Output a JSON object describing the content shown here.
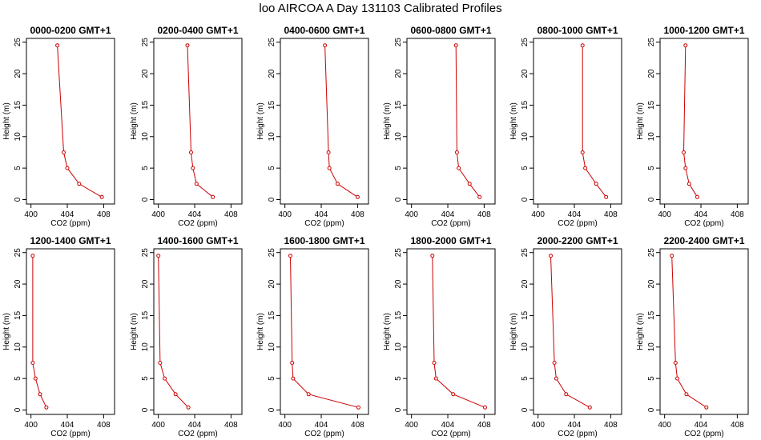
{
  "figure": {
    "title": "loo AIRCOA A  Day 131103  Calibrated Profiles"
  },
  "chart_data": [
    {
      "type": "line",
      "title": "0000-0200 GMT+1",
      "xlabel": "CO2 (ppm)",
      "ylabel": "Height (m)",
      "xlim": [
        399.5,
        409.2
      ],
      "ylim": [
        -0.7,
        25.6
      ],
      "x_ticks": [
        400,
        404,
        408
      ],
      "y_ticks": [
        0,
        5,
        10,
        15,
        20,
        25
      ],
      "color": "#cc0000",
      "series": [
        {
          "x": [
            402.9,
            403.6,
            404.0,
            405.3,
            407.8
          ],
          "y": [
            24.5,
            7.5,
            5.0,
            2.5,
            0.4
          ]
        }
      ]
    },
    {
      "type": "line",
      "title": "0200-0400 GMT+1",
      "xlabel": "CO2 (ppm)",
      "ylabel": "Height (m)",
      "xlim": [
        399.5,
        409.2
      ],
      "ylim": [
        -0.7,
        25.6
      ],
      "x_ticks": [
        400,
        404,
        408
      ],
      "y_ticks": [
        0,
        5,
        10,
        15,
        20,
        25
      ],
      "color": "#cc0000",
      "series": [
        {
          "x": [
            403.2,
            403.6,
            403.8,
            404.2,
            406.0
          ],
          "y": [
            24.5,
            7.5,
            5.0,
            2.5,
            0.4
          ]
        }
      ]
    },
    {
      "type": "line",
      "title": "0400-0600 GMT+1",
      "xlabel": "CO2 (ppm)",
      "ylabel": "Height (m)",
      "xlim": [
        399.5,
        409.2
      ],
      "ylim": [
        -0.7,
        25.6
      ],
      "x_ticks": [
        400,
        404,
        408
      ],
      "y_ticks": [
        0,
        5,
        10,
        15,
        20,
        25
      ],
      "color": "#cc0000",
      "series": [
        {
          "x": [
            404.4,
            404.8,
            404.9,
            405.8,
            408.0
          ],
          "y": [
            24.5,
            7.5,
            5.0,
            2.5,
            0.4
          ]
        }
      ]
    },
    {
      "type": "line",
      "title": "0600-0800 GMT+1",
      "xlabel": "CO2 (ppm)",
      "ylabel": "Height (m)",
      "xlim": [
        399.5,
        409.2
      ],
      "ylim": [
        -0.7,
        25.6
      ],
      "x_ticks": [
        400,
        404,
        408
      ],
      "y_ticks": [
        0,
        5,
        10,
        15,
        20,
        25
      ],
      "color": "#cc0000",
      "series": [
        {
          "x": [
            404.9,
            405.0,
            405.2,
            406.4,
            407.5
          ],
          "y": [
            24.5,
            7.5,
            5.0,
            2.5,
            0.4
          ]
        }
      ]
    },
    {
      "type": "line",
      "title": "0800-1000 GMT+1",
      "xlabel": "CO2 (ppm)",
      "ylabel": "Height (m)",
      "xlim": [
        399.5,
        409.2
      ],
      "ylim": [
        -0.7,
        25.6
      ],
      "x_ticks": [
        400,
        404,
        408
      ],
      "y_ticks": [
        0,
        5,
        10,
        15,
        20,
        25
      ],
      "color": "#cc0000",
      "series": [
        {
          "x": [
            404.9,
            404.9,
            405.2,
            406.4,
            407.5
          ],
          "y": [
            24.5,
            7.5,
            5.0,
            2.5,
            0.4
          ]
        }
      ]
    },
    {
      "type": "line",
      "title": "1000-1200 GMT+1",
      "xlabel": "CO2 (ppm)",
      "ylabel": "Height (m)",
      "xlim": [
        399.5,
        409.2
      ],
      "ylim": [
        -0.7,
        25.6
      ],
      "x_ticks": [
        400,
        404,
        408
      ],
      "y_ticks": [
        0,
        5,
        10,
        15,
        20,
        25
      ],
      "color": "#cc0000",
      "series": [
        {
          "x": [
            402.3,
            402.1,
            402.3,
            402.7,
            403.6
          ],
          "y": [
            24.5,
            7.5,
            5.0,
            2.5,
            0.4
          ]
        }
      ]
    },
    {
      "type": "line",
      "title": "1200-1400 GMT+1",
      "xlabel": "CO2 (ppm)",
      "ylabel": "Height (m)",
      "xlim": [
        399.5,
        409.2
      ],
      "ylim": [
        -0.7,
        25.6
      ],
      "x_ticks": [
        400,
        404,
        408
      ],
      "y_ticks": [
        0,
        5,
        10,
        15,
        20,
        25
      ],
      "color": "#cc0000",
      "series": [
        {
          "x": [
            400.2,
            400.2,
            400.5,
            401.0,
            401.7
          ],
          "y": [
            24.5,
            7.5,
            5.0,
            2.5,
            0.4
          ]
        }
      ]
    },
    {
      "type": "line",
      "title": "1400-1600 GMT+1",
      "xlabel": "CO2 (ppm)",
      "ylabel": "Height (m)",
      "xlim": [
        399.5,
        409.2
      ],
      "ylim": [
        -0.7,
        25.6
      ],
      "x_ticks": [
        400,
        404,
        408
      ],
      "y_ticks": [
        0,
        5,
        10,
        15,
        20,
        25
      ],
      "color": "#cc0000",
      "series": [
        {
          "x": [
            400.0,
            400.2,
            400.7,
            401.9,
            403.3
          ],
          "y": [
            24.5,
            7.5,
            5.0,
            2.5,
            0.4
          ]
        }
      ]
    },
    {
      "type": "line",
      "title": "1600-1800 GMT+1",
      "xlabel": "CO2 (ppm)",
      "ylabel": "Height (m)",
      "xlim": [
        399.5,
        409.2
      ],
      "ylim": [
        -0.7,
        25.6
      ],
      "x_ticks": [
        400,
        404,
        408
      ],
      "y_ticks": [
        0,
        5,
        10,
        15,
        20,
        25
      ],
      "color": "#cc0000",
      "series": [
        {
          "x": [
            400.6,
            400.8,
            400.9,
            402.6,
            408.1
          ],
          "y": [
            24.5,
            7.5,
            5.0,
            2.5,
            0.4
          ]
        }
      ]
    },
    {
      "type": "line",
      "title": "1800-2000 GMT+1",
      "xlabel": "CO2 (ppm)",
      "ylabel": "Height (m)",
      "xlim": [
        399.5,
        409.2
      ],
      "ylim": [
        -0.7,
        25.6
      ],
      "x_ticks": [
        400,
        404,
        408
      ],
      "y_ticks": [
        0,
        5,
        10,
        15,
        20,
        25
      ],
      "color": "#cc0000",
      "series": [
        {
          "x": [
            402.3,
            402.5,
            402.7,
            404.6,
            408.1
          ],
          "y": [
            24.5,
            7.5,
            5.0,
            2.5,
            0.4
          ]
        }
      ]
    },
    {
      "type": "line",
      "title": "2000-2200 GMT+1",
      "xlabel": "CO2 (ppm)",
      "ylabel": "Height (m)",
      "xlim": [
        399.5,
        409.2
      ],
      "ylim": [
        -0.7,
        25.6
      ],
      "x_ticks": [
        400,
        404,
        408
      ],
      "y_ticks": [
        0,
        5,
        10,
        15,
        20,
        25
      ],
      "color": "#cc0000",
      "series": [
        {
          "x": [
            401.4,
            401.8,
            402.0,
            403.1,
            405.7
          ],
          "y": [
            24.5,
            7.5,
            5.0,
            2.5,
            0.4
          ]
        }
      ]
    },
    {
      "type": "line",
      "title": "2200-2400 GMT+1",
      "xlabel": "CO2 (ppm)",
      "ylabel": "Height (m)",
      "xlim": [
        399.5,
        409.2
      ],
      "ylim": [
        -0.7,
        25.6
      ],
      "x_ticks": [
        400,
        404,
        408
      ],
      "y_ticks": [
        0,
        5,
        10,
        15,
        20,
        25
      ],
      "color": "#cc0000",
      "series": [
        {
          "x": [
            400.8,
            401.2,
            401.4,
            402.4,
            404.6
          ],
          "y": [
            24.5,
            7.5,
            5.0,
            2.5,
            0.4
          ]
        }
      ]
    }
  ]
}
